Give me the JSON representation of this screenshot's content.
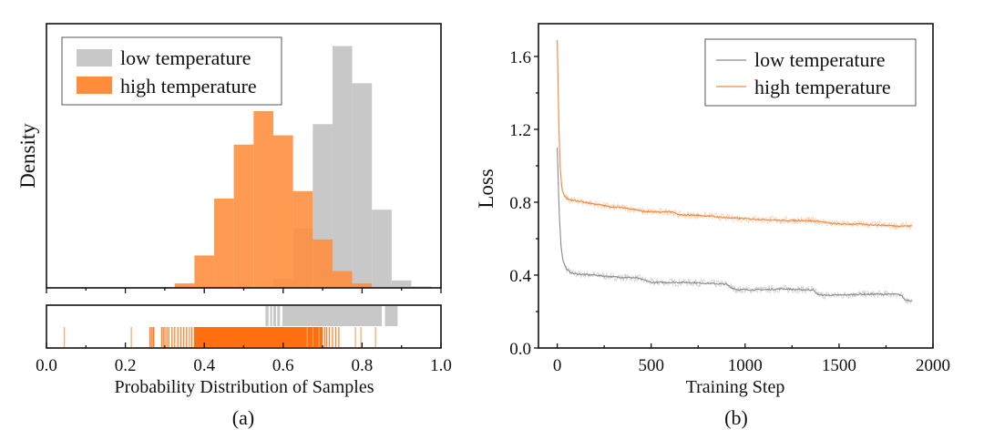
{
  "chart_data": [
    {
      "id": "a",
      "type": "bar",
      "subtype": "histogram-with-rug",
      "panel_label": "(a)",
      "title": "",
      "xlabel": "Probability Distribution of Samples",
      "ylabel": "Density",
      "xlim": [
        0.0,
        1.0
      ],
      "xticks": [
        "0.0",
        "0.2",
        "0.4",
        "0.6",
        "0.8",
        "1.0"
      ],
      "xtick_values": [
        0.0,
        0.2,
        0.4,
        0.6,
        0.8,
        1.0
      ],
      "yticks_shown": false,
      "bin_width": 0.05,
      "legend": {
        "placement": "top-left",
        "entries": [
          "low temperature",
          "high temperature"
        ]
      },
      "series": [
        {
          "name": "low temperature",
          "color": "#c8c8c8",
          "bin_starts": [
            0.575,
            0.625,
            0.675,
            0.725,
            0.775,
            0.825,
            0.875,
            0.925
          ],
          "density": [
            0.25,
            1.6,
            4.4,
            6.5,
            5.5,
            2.1,
            0.2,
            0.04
          ]
        },
        {
          "name": "high temperature",
          "color": "#ff8c3a",
          "bin_starts": [
            0.325,
            0.375,
            0.425,
            0.475,
            0.525,
            0.575,
            0.625,
            0.675,
            0.725,
            0.775
          ],
          "density": [
            0.12,
            0.87,
            2.4,
            3.85,
            4.75,
            4.1,
            2.6,
            1.3,
            0.45,
            0.12
          ]
        }
      ],
      "rug": {
        "low temperature": {
          "color": "#c8c8c8",
          "ranges": [
            [
              0.555,
              0.563
            ],
            [
              0.567,
              0.572
            ],
            [
              0.575,
              0.582
            ],
            [
              0.585,
              0.592
            ],
            [
              0.598,
              0.85
            ],
            [
              0.858,
              0.89
            ]
          ]
        },
        "high temperature": {
          "color": "#ff6f0f",
          "values": [
            0.045,
            0.215,
            0.262,
            0.266,
            0.27,
            0.272,
            0.292,
            0.296,
            0.3,
            0.305,
            0.31,
            0.318,
            0.325,
            0.333,
            0.34,
            0.348,
            0.355,
            0.362,
            0.368,
            0.375,
            0.705,
            0.71,
            0.717,
            0.725,
            0.733,
            0.741,
            0.783,
            0.797,
            0.834
          ],
          "dense_range": [
            0.375,
            0.7
          ]
        }
      }
    },
    {
      "id": "b",
      "type": "line",
      "panel_label": "(b)",
      "title": "",
      "xlabel": "Training Step",
      "ylabel": "Loss",
      "xlim": [
        -100,
        2000
      ],
      "ylim": [
        0.0,
        1.78
      ],
      "xticks": [
        "0",
        "500",
        "1000",
        "1500",
        "2000"
      ],
      "xtick_values": [
        0,
        500,
        1000,
        1500,
        2000
      ],
      "yticks": [
        "0.0",
        "0.4",
        "0.8",
        "1.2",
        "1.6"
      ],
      "ytick_values": [
        0.0,
        0.4,
        0.8,
        1.2,
        1.6
      ],
      "legend": {
        "placement": "top-right",
        "entries": [
          "low temperature",
          "high temperature"
        ]
      },
      "series": [
        {
          "name": "low temperature",
          "color": "#8c8c8c",
          "x": [
            0,
            10,
            20,
            30,
            50,
            80,
            120,
            200,
            300,
            420,
            470,
            500,
            600,
            700,
            800,
            900,
            930,
            960,
            1000,
            1100,
            1200,
            1300,
            1360,
            1380,
            1400,
            1500,
            1600,
            1700,
            1800,
            1830,
            1850,
            1890
          ],
          "y": [
            1.1,
            0.75,
            0.56,
            0.48,
            0.43,
            0.41,
            0.405,
            0.4,
            0.39,
            0.385,
            0.37,
            0.36,
            0.36,
            0.36,
            0.355,
            0.35,
            0.33,
            0.32,
            0.32,
            0.32,
            0.325,
            0.32,
            0.32,
            0.3,
            0.29,
            0.29,
            0.295,
            0.295,
            0.295,
            0.29,
            0.265,
            0.26
          ]
        },
        {
          "name": "high temperature",
          "color": "#f08a40",
          "x": [
            0,
            8,
            15,
            25,
            40,
            60,
            80,
            120,
            200,
            280,
            350,
            420,
            450,
            550,
            600,
            650,
            700,
            800,
            900,
            1000,
            1100,
            1200,
            1300,
            1400,
            1450,
            1500,
            1600,
            1700,
            1800,
            1890
          ],
          "y": [
            1.69,
            1.25,
            1.0,
            0.87,
            0.83,
            0.815,
            0.81,
            0.805,
            0.79,
            0.775,
            0.77,
            0.76,
            0.75,
            0.745,
            0.75,
            0.73,
            0.73,
            0.725,
            0.715,
            0.71,
            0.705,
            0.7,
            0.7,
            0.695,
            0.685,
            0.68,
            0.68,
            0.675,
            0.67,
            0.67
          ]
        }
      ]
    }
  ]
}
